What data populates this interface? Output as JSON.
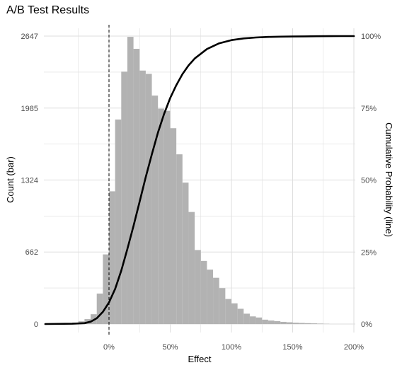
{
  "chart_data": {
    "type": "bar",
    "title": "A/B Test Results",
    "xlabel": "Effect",
    "ylabel": "Count (bar)",
    "y2label": "Cumulative Probability (line)",
    "xlim": [
      -0.52,
      2.0
    ],
    "ylim": [
      0,
      2647
    ],
    "y2lim": [
      0,
      1
    ],
    "x_ticks": [
      0,
      0.5,
      1.0,
      1.5,
      2.0
    ],
    "x_tick_labels": [
      "0%",
      "50%",
      "100%",
      "150%",
      "200%"
    ],
    "y_ticks": [
      0,
      662,
      1324,
      1985,
      2647
    ],
    "y_tick_labels": [
      "0",
      "662",
      "1324",
      "1985",
      "2647"
    ],
    "y2_ticks": [
      0,
      0.25,
      0.5,
      0.75,
      1.0
    ],
    "y2_tick_labels": [
      "0%",
      "25%",
      "50%",
      "75%",
      "100%"
    ],
    "grid": true,
    "reference_line_x": 0,
    "bins": {
      "left": [
        -0.35,
        -0.3,
        -0.25,
        -0.2,
        -0.15,
        -0.1,
        -0.05,
        0.0,
        0.05,
        0.1,
        0.15,
        0.2,
        0.25,
        0.3,
        0.35,
        0.4,
        0.45,
        0.5,
        0.55,
        0.6,
        0.65,
        0.7,
        0.75,
        0.8,
        0.85,
        0.9,
        0.95,
        1.0,
        1.05,
        1.1,
        1.15,
        1.2,
        1.25,
        1.3,
        1.35,
        1.4,
        1.45,
        1.5,
        1.55,
        1.6,
        1.65,
        1.7,
        1.75
      ],
      "width": 0.05,
      "counts": [
        8,
        12,
        25,
        45,
        90,
        280,
        640,
        1220,
        1880,
        2320,
        2640,
        2530,
        2330,
        2300,
        2100,
        1980,
        1960,
        1800,
        1560,
        1300,
        1030,
        680,
        580,
        500,
        425,
        330,
        230,
        190,
        140,
        95,
        70,
        60,
        40,
        32,
        26,
        20,
        16,
        12,
        10,
        8,
        6,
        4,
        2
      ]
    },
    "series": [
      {
        "type": "line",
        "axis": "right",
        "x": [
          -0.52,
          -0.3,
          -0.2,
          -0.15,
          -0.1,
          -0.05,
          0.0,
          0.05,
          0.1,
          0.15,
          0.2,
          0.25,
          0.3,
          0.35,
          0.4,
          0.45,
          0.5,
          0.55,
          0.6,
          0.65,
          0.7,
          0.8,
          0.9,
          1.0,
          1.1,
          1.2,
          1.3,
          1.4,
          1.5,
          1.6,
          1.7,
          1.8,
          1.9,
          2.0
        ],
        "y": [
          0.0,
          0.001,
          0.003,
          0.008,
          0.02,
          0.042,
          0.075,
          0.122,
          0.185,
          0.26,
          0.34,
          0.425,
          0.51,
          0.59,
          0.665,
          0.73,
          0.785,
          0.83,
          0.868,
          0.898,
          0.922,
          0.955,
          0.975,
          0.986,
          0.992,
          0.995,
          0.997,
          0.998,
          0.9985,
          0.999,
          0.9995,
          0.9998,
          0.9999,
          1.0
        ]
      }
    ]
  },
  "colors": {
    "bar": "#b2b2b2",
    "line": "#000000",
    "grid": "#dedede"
  }
}
